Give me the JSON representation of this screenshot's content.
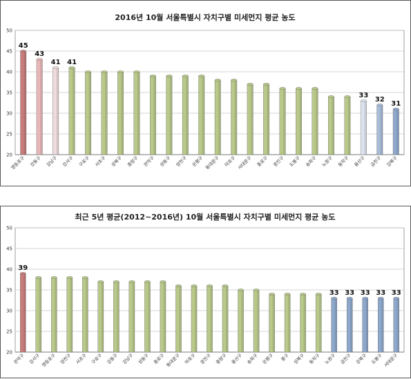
{
  "chart_data": [
    {
      "type": "bar",
      "title": "2016년 10월 서울특별시 자치구별 미세먼지 평균 농도",
      "xlabel": "",
      "ylabel": "",
      "ylim": [
        20,
        50
      ],
      "yticks": [
        20,
        25,
        30,
        35,
        40,
        45,
        50
      ],
      "grid": true,
      "categories": [
        "영등포구",
        "강동구",
        "강남구",
        "강서구",
        "구로구",
        "서초구",
        "성북구",
        "중랑구",
        "관악구",
        "성동구",
        "양천구",
        "은평구",
        "동대문구",
        "마포구",
        "서대문구",
        "종로구",
        "광진구",
        "도봉구",
        "송파구",
        "노원구",
        "동작구",
        "용산구",
        "금천구",
        "강북구"
      ],
      "values": [
        45,
        43,
        41,
        41,
        40,
        40,
        40,
        40,
        39,
        39,
        39,
        39,
        38,
        38,
        37,
        37,
        36,
        36,
        36,
        34,
        34,
        33,
        32,
        31
      ],
      "data_labels": [
        "45",
        "43",
        "41",
        "41",
        "",
        "",
        "",
        "",
        "",
        "",
        "",
        "",
        "",
        "",
        "",
        "",
        "",
        "",
        "",
        "",
        "",
        "33",
        "32",
        "31"
      ],
      "bar_colors": [
        "#c87c7c",
        "#e8b8b8",
        "#f0dcdc",
        "#b8c98a",
        "#b8c98a",
        "#b8c98a",
        "#b8c98a",
        "#b8c98a",
        "#b8c98a",
        "#b8c98a",
        "#b8c98a",
        "#b8c98a",
        "#b8c98a",
        "#b8c98a",
        "#b8c98a",
        "#b8c98a",
        "#b8c98a",
        "#b8c98a",
        "#b8c98a",
        "#b8c98a",
        "#b8c98a",
        "#dde4ef",
        "#a8bcd8",
        "#8ea8cc"
      ]
    },
    {
      "type": "bar",
      "title": "최근 5년 평균(2012~2016년) 10월 서울특별시 자치구별 미세먼지 평균 농도",
      "xlabel": "",
      "ylabel": "",
      "ylim": [
        20,
        50
      ],
      "yticks": [
        20,
        25,
        30,
        35,
        40,
        45,
        50
      ],
      "grid": true,
      "categories": [
        "관악구",
        "강서구",
        "영등포구",
        "양천구",
        "서초구",
        "구로구",
        "강동구",
        "강남구",
        "성동구",
        "종로구",
        "동대문구",
        "마포구",
        "광진구",
        "중랑구",
        "용산구",
        "송파구",
        "은평구",
        "중구",
        "성북구",
        "동작구",
        "노원구",
        "금천구",
        "강북구",
        "도봉구",
        "서대문구"
      ],
      "values": [
        39,
        38,
        38,
        38,
        38,
        37,
        37,
        37,
        37,
        37,
        36,
        36,
        36,
        36,
        35,
        35,
        34,
        34,
        34,
        34,
        33,
        33,
        33,
        33,
        33
      ],
      "data_labels": [
        "39",
        "",
        "",
        "",
        "",
        "",
        "",
        "",
        "",
        "",
        "",
        "",
        "",
        "",
        "",
        "",
        "",
        "",
        "",
        "",
        "33",
        "33",
        "33",
        "33",
        "33"
      ],
      "bar_colors": [
        "#c87c7c",
        "#b8c98a",
        "#b8c98a",
        "#b8c98a",
        "#b8c98a",
        "#b8c98a",
        "#b8c98a",
        "#b8c98a",
        "#b8c98a",
        "#b8c98a",
        "#b8c98a",
        "#b8c98a",
        "#b8c98a",
        "#b8c98a",
        "#b8c98a",
        "#b8c98a",
        "#b8c98a",
        "#b8c98a",
        "#b8c98a",
        "#b8c98a",
        "#8ea8cc",
        "#8ea8cc",
        "#8ea8cc",
        "#8ea8cc",
        "#8ea8cc"
      ]
    }
  ]
}
